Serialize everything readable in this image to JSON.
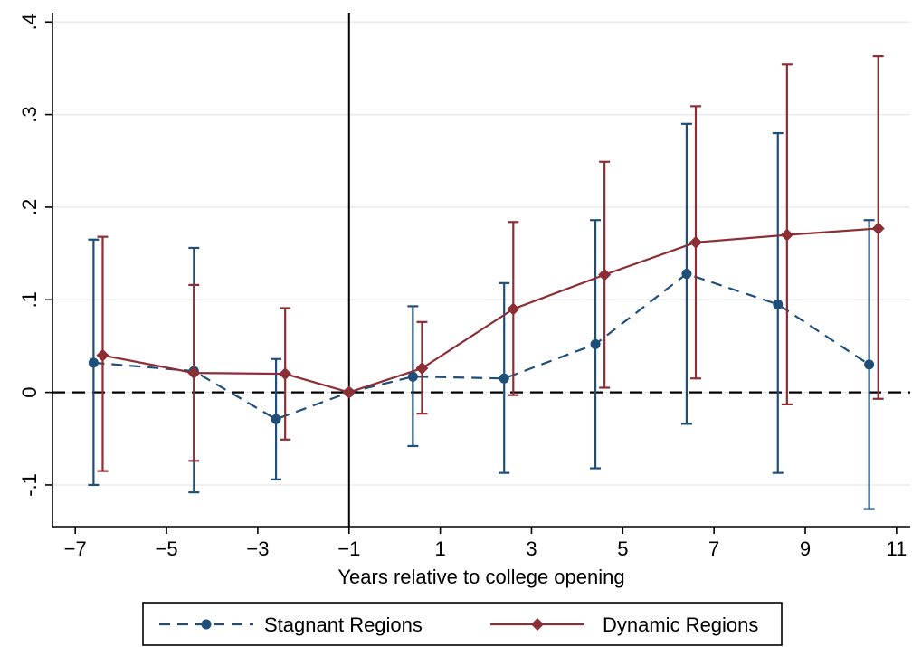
{
  "chart_data": {
    "type": "line",
    "title": "",
    "xlabel": "Years relative to college opening",
    "ylabel": "",
    "xlim": [
      -7.5,
      11.3
    ],
    "ylim": [
      -0.145,
      0.41
    ],
    "xticks": [
      -7,
      -5,
      -3,
      -1,
      1,
      3,
      5,
      7,
      9,
      11
    ],
    "xtick_labels": [
      "−7",
      "−5",
      "−3",
      "−1",
      "1",
      "3",
      "5",
      "7",
      "9",
      "11"
    ],
    "yticks": [
      -0.1,
      0,
      0.1,
      0.2,
      0.3,
      0.4
    ],
    "ytick_labels": [
      "-.1",
      "0",
      ".1",
      ".2",
      ".3",
      ".4"
    ],
    "grid": true,
    "reference_lines": {
      "x": -1,
      "y": 0
    },
    "legend_position": "bottom",
    "series": [
      {
        "name": "Stagnant Regions",
        "color": "#1f4e79",
        "line_style": "dashed",
        "marker": "circle",
        "x": [
          -6.6,
          -4.4,
          -2.6,
          -1,
          0.4,
          2.4,
          4.4,
          6.4,
          8.4,
          10.4
        ],
        "y": [
          0.032,
          0.023,
          -0.029,
          0.0,
          0.017,
          0.015,
          0.052,
          0.128,
          0.095,
          0.03
        ],
        "ci_low": [
          -0.1,
          -0.108,
          -0.094,
          0.0,
          -0.058,
          -0.087,
          -0.082,
          -0.034,
          -0.087,
          -0.126
        ],
        "ci_high": [
          0.165,
          0.156,
          0.036,
          0.0,
          0.093,
          0.118,
          0.186,
          0.29,
          0.28,
          0.186
        ]
      },
      {
        "name": "Dynamic Regions",
        "color": "#8b2e35",
        "line_style": "solid",
        "marker": "diamond",
        "x": [
          -6.4,
          -4.4,
          -2.4,
          -1,
          0.6,
          2.6,
          4.6,
          6.6,
          8.6,
          10.6
        ],
        "y": [
          0.04,
          0.021,
          0.02,
          0.0,
          0.026,
          0.09,
          0.127,
          0.162,
          0.17,
          0.177
        ],
        "ci_low": [
          -0.085,
          -0.074,
          -0.051,
          0.0,
          -0.023,
          -0.003,
          0.005,
          0.015,
          -0.013,
          -0.007
        ],
        "ci_high": [
          0.168,
          0.116,
          0.091,
          0.0,
          0.076,
          0.184,
          0.249,
          0.309,
          0.354,
          0.363
        ]
      }
    ]
  }
}
